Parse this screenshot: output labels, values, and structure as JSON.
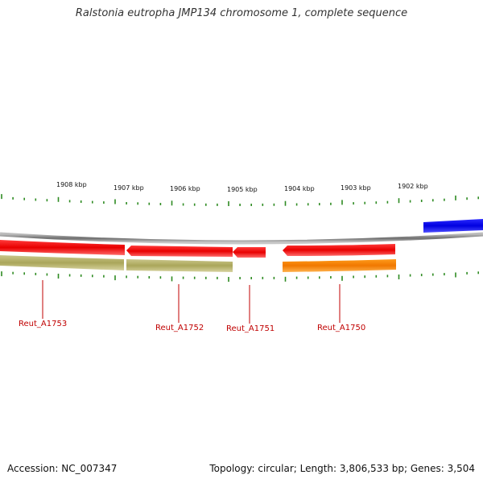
{
  "title": "Ralstonia eutropha JMP134 chromosome 1, complete sequence",
  "footer": {
    "accession": "Accession: NC_007347",
    "summary": "Topology: circular; Length: 3,806,533 bp; Genes: 3,504"
  },
  "scale_labels": [
    "1908 kbp",
    "1907 kbp",
    "1906 kbp",
    "1905 kbp",
    "1904 kbp",
    "1903 kbp",
    "1902 kbp"
  ],
  "genes": [
    {
      "name": "Reut_A1753",
      "strand": "reverse",
      "cds_color": "#ff0000",
      "gene_color": "#b7b56c"
    },
    {
      "name": "Reut_A1752",
      "strand": "reverse",
      "cds_color": "#ff0000",
      "gene_color": "#b7b56c"
    },
    {
      "name": "Reut_A1751",
      "strand": "reverse",
      "cds_color": "#ff0000"
    },
    {
      "name": "Reut_A1750",
      "strand": "reverse",
      "cds_color": "#ff0000",
      "gene_color": "#ff8c00"
    }
  ],
  "colors": {
    "backbone": "#7a7a7a",
    "tick": "#2e8b22",
    "forward_feature": "#0000ff"
  }
}
